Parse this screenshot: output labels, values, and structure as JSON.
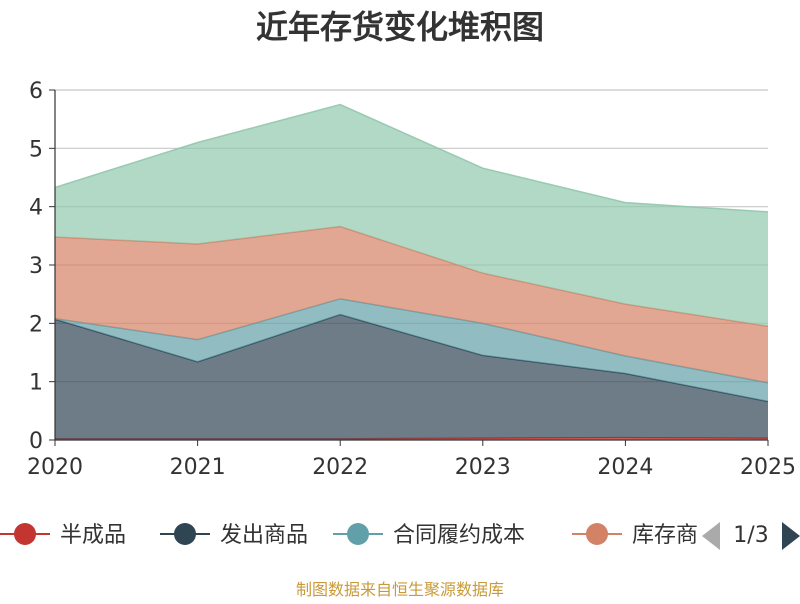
{
  "chart_data": {
    "type": "area",
    "stacked": true,
    "title": "近年存货变化堆积图",
    "ylabel": "",
    "xlabel": "",
    "x": [
      "2020",
      "2021",
      "2022",
      "2023",
      "2024",
      "2025"
    ],
    "ylim": [
      0,
      6
    ],
    "yticks": [
      0,
      1,
      2,
      3,
      4,
      5,
      6
    ],
    "grid": true,
    "legend_position": "bottom",
    "series": [
      {
        "name": "半成品",
        "color": "#c23531",
        "values": [
          0.02,
          0.02,
          0.02,
          0.03,
          0.04,
          0.03
        ]
      },
      {
        "name": "发出商品",
        "color": "#2f4554",
        "values": [
          2.05,
          1.32,
          2.13,
          1.42,
          1.1,
          0.63
        ]
      },
      {
        "name": "合同履约成本",
        "color": "#61a0a8",
        "values": [
          0.01,
          0.38,
          0.27,
          0.55,
          0.3,
          0.32
        ]
      },
      {
        "name": "库存商品",
        "color": "#d48265",
        "values": [
          1.4,
          1.64,
          1.24,
          0.86,
          0.89,
          0.97
        ]
      },
      {
        "name": "",
        "color": "#91c7ae",
        "values": [
          0.85,
          1.74,
          2.09,
          1.8,
          1.74,
          1.96
        ]
      }
    ]
  },
  "legend": {
    "visible": [
      {
        "label": "半成品",
        "color": "#c23531"
      },
      {
        "label": "发出商品",
        "color": "#2f4554"
      },
      {
        "label": "合同履约成本",
        "color": "#61a0a8"
      },
      {
        "label": "库存商",
        "color": "#d48265"
      }
    ],
    "page_indicator": "1/3"
  },
  "source": "制图数据来自恒生聚源数据库"
}
